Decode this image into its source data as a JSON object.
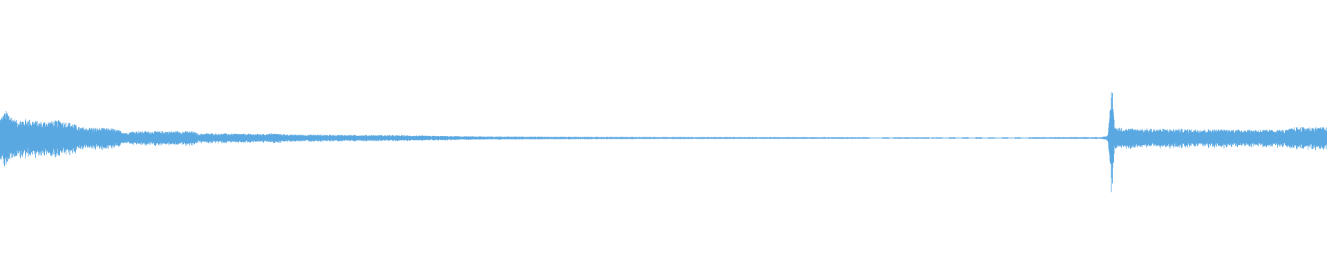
{
  "chart_data": {
    "type": "area",
    "title": "",
    "xlabel": "",
    "ylabel": "",
    "xlim": [
      0,
      1
    ],
    "ylim": [
      -1,
      1
    ],
    "grid": false,
    "legend": "none",
    "color": "#5aa8e2",
    "envelope": {
      "x": [
        0.0,
        0.005,
        0.012,
        0.02,
        0.03,
        0.045,
        0.055,
        0.06,
        0.085,
        0.095,
        0.1,
        0.145,
        0.15,
        0.155,
        0.2,
        0.205,
        0.22,
        0.3,
        0.36,
        0.45,
        0.6,
        0.7,
        0.83,
        0.835,
        0.838,
        0.84,
        0.85,
        0.9,
        0.97,
        0.975,
        1.0
      ],
      "amplitude": [
        0.15,
        0.2,
        0.13,
        0.14,
        0.12,
        0.13,
        0.11,
        0.08,
        0.07,
        0.04,
        0.05,
        0.05,
        0.03,
        0.035,
        0.03,
        0.035,
        0.025,
        0.02,
        0.012,
        0.008,
        0.006,
        0.005,
        0.006,
        0.02,
        0.42,
        0.08,
        0.07,
        0.065,
        0.06,
        0.08,
        0.08
      ]
    },
    "gaps": [
      [
        0.655,
        0.665
      ],
      [
        0.67,
        0.673
      ],
      [
        0.7,
        0.702
      ],
      [
        0.71,
        0.715
      ],
      [
        0.72,
        0.725
      ],
      [
        0.73,
        0.735
      ],
      [
        0.74,
        0.745
      ],
      [
        0.75,
        0.755
      ],
      [
        0.76,
        0.765
      ],
      [
        0.77,
        0.775
      ]
    ]
  }
}
